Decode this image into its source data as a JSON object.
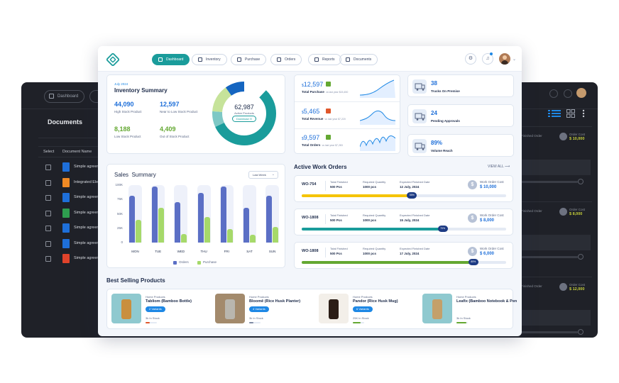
{
  "colors": {
    "accent": "#1a9c9b",
    "primary_blue": "#1e6fd9",
    "orders": "#5b6fc5",
    "purchase": "#a6d96a",
    "progress_yellow": "#f5c400",
    "progress_teal": "#1a9c9b",
    "progress_green": "#64a832",
    "dark_bg": "#1f2128"
  },
  "background_app": {
    "nav_item": "Dashboard",
    "title": "Documents",
    "columns": [
      "Select",
      "Document Name"
    ],
    "files": [
      {
        "name": "Simple agreem",
        "icon": "doc-blue-icon"
      },
      {
        "name": "Integrated Elec",
        "icon": "doc-orange-icon"
      },
      {
        "name": "Simple agreem",
        "icon": "doc-blue-icon"
      },
      {
        "name": "Simple agreem",
        "icon": "doc-green-icon"
      },
      {
        "name": "Simple agreem",
        "icon": "doc-blue-icon"
      },
      {
        "name": "Simple agreem",
        "icon": "doc-blue-icon"
      },
      {
        "name": "Simple agreem",
        "icon": "doc-red-icon"
      }
    ],
    "cards": [
      {
        "label": "Finished Order",
        "cost_label": "Order Cost",
        "cost": "$ 10,000"
      },
      {
        "label": "Finished Order",
        "cost_label": "Order Cost",
        "cost": "$ 8,000"
      },
      {
        "label": "Finished Order",
        "cost_label": "Order Cost",
        "cost": "$ 12,000"
      }
    ]
  },
  "nav": {
    "items": [
      {
        "label": "Dashboard",
        "icon": "dashboard-icon",
        "active": true
      },
      {
        "label": "Inventory",
        "icon": "box-icon",
        "active": false
      },
      {
        "label": "Purchase",
        "icon": "cart-icon",
        "active": false
      },
      {
        "label": "Orders",
        "icon": "cart-icon",
        "active": false
      },
      {
        "label": "Reports",
        "icon": "report-icon",
        "active": false
      },
      {
        "label": "Documents",
        "icon": "document-icon",
        "active": false
      }
    ],
    "settings_icon": "gear-icon",
    "notification_icon": "bell-icon"
  },
  "inventory": {
    "date": "July 2024",
    "title": "Inventory Summary",
    "stats": [
      {
        "value": "44,090",
        "label": "High Stock Product",
        "color": "#1e6fd9"
      },
      {
        "value": "12,597",
        "label": "Near to Low Stock Product",
        "color": "#1e6fd9"
      },
      {
        "value": "8,188",
        "label": "Low Stock Product",
        "color": "#64a832"
      },
      {
        "value": "4,409",
        "label": "Out of Stock Product",
        "color": "#64a832"
      }
    ],
    "total": "62,987",
    "total_label": "Active Products",
    "download": "Download",
    "segments": [
      {
        "share": 0.56,
        "color": "#1a9c9b"
      },
      {
        "share": 0.08,
        "color": "#7ec8c5"
      },
      {
        "share": 0.14,
        "color": "#c6e39a"
      },
      {
        "share": 0.22,
        "color": "#1565c0"
      }
    ]
  },
  "kpis": [
    {
      "value": "12,597",
      "label": "Total Purchase",
      "compare": "vs last year $15,450",
      "flag_color": "#64a832"
    },
    {
      "value": "5,465",
      "label": "Total Revenue",
      "compare": "vs last year $7,220",
      "flag_color": "#e0572b"
    },
    {
      "value": "9,597",
      "label": "Total Orders",
      "compare": "vs last year $7,283",
      "flag_color": "#64a832"
    }
  ],
  "side_kpis": [
    {
      "value": "38",
      "label": "Trucks On Premise",
      "icon": "truck-icon"
    },
    {
      "value": "24",
      "label": "Pending Approvals",
      "icon": "truck-icon"
    },
    {
      "value": "89%",
      "label": "Volume Reach",
      "icon": "map-pin-icon"
    }
  ],
  "sales": {
    "title_a": "Sales",
    "title_b": "Summary",
    "filter": "Last Week",
    "legend_orders": "Orders",
    "legend_purchase": "Purchase"
  },
  "chart_data": {
    "type": "bar",
    "categories": [
      "MON",
      "TUE",
      "WED",
      "THU",
      "FRI",
      "SAT",
      "SUN"
    ],
    "y_ticks": [
      "100K",
      "75K",
      "50K",
      "25K",
      "0"
    ],
    "ylim": [
      0,
      100000
    ],
    "series": [
      {
        "name": "Orders",
        "values": [
          81000,
          97000,
          70000,
          87000,
          97000,
          61000,
          81000
        ]
      },
      {
        "name": "Purchase",
        "values": [
          40000,
          61000,
          15000,
          44000,
          24000,
          13000,
          27000
        ]
      }
    ],
    "grid": false,
    "legend": "bottom"
  },
  "work_orders": {
    "title": "Active Work Orders",
    "view_all": "VIEW ALL",
    "items": [
      {
        "id": "WO-754",
        "finished_label": "Total Finished",
        "finished": "500 Pcs",
        "required_label": "Required Quantity",
        "required": "1000 pcs",
        "date_label": "Expected Finished Date",
        "date": "12 July, 2024",
        "cost_label": "Work Order Cost",
        "cost": "$ 10,000",
        "progress": 0.55,
        "progress_text": "55%",
        "color": "#f5c400"
      },
      {
        "id": "WO-1808",
        "finished_label": "Total Finished",
        "finished": "500 Pcs",
        "required_label": "Required Quantity",
        "required": "1000 pcs",
        "date_label": "Expected Finished Date",
        "date": "15 July, 2024",
        "cost_label": "Work Order Cost",
        "cost": "$ 8,000",
        "progress": 0.7,
        "progress_text": "70%",
        "color": "#1a9c9b"
      },
      {
        "id": "WO-1808",
        "finished_label": "Total Finished",
        "finished": "500 Pcs",
        "required_label": "Required Quantity",
        "required": "1000 pcs",
        "date_label": "Expected Finished Date",
        "date": "17 July, 2024",
        "cost_label": "Work Order Cost",
        "cost": "$ 6,000",
        "progress": 0.85,
        "progress_text": "85%",
        "color": "#64a832"
      }
    ]
  },
  "best_selling": {
    "title_a": "Best Selling",
    "title_b": "Products",
    "items": [
      {
        "category": "Home Products",
        "name": "Tabliom (Bamboo Bottle)",
        "variants": "2 Variants",
        "stock": "3k In Stock",
        "stock_level": 0.35,
        "stock_color": "#e0572b",
        "img_bg": "#8fc9cf",
        "obj_color": "#c98f3e"
      },
      {
        "category": "Home Products",
        "name": "Bloomē (Rice Husk Planter)",
        "variants": "4 Variants",
        "stock": "3k In Stock",
        "stock_level": 0.35,
        "stock_color": "#7e8aa3",
        "img_bg": "#a38a6c",
        "obj_color": "#b9b6ae"
      },
      {
        "category": "Home Products",
        "name": "Pandor (Rice Husk Mug)",
        "variants": "6 Variants",
        "stock": "25K In Stock",
        "stock_level": 0.7,
        "stock_color": "#64a832",
        "img_bg": "#f3efe9",
        "obj_color": "#2b1d16"
      },
      {
        "category": "Home Products",
        "name": "Leafix (Bamboo Notebook & Pen",
        "variants": "",
        "stock": "3k In Stock",
        "stock_level": 0.9,
        "stock_color": "#64a832",
        "img_bg": "#8fc9cf",
        "obj_color": "#c4a06a"
      }
    ]
  }
}
